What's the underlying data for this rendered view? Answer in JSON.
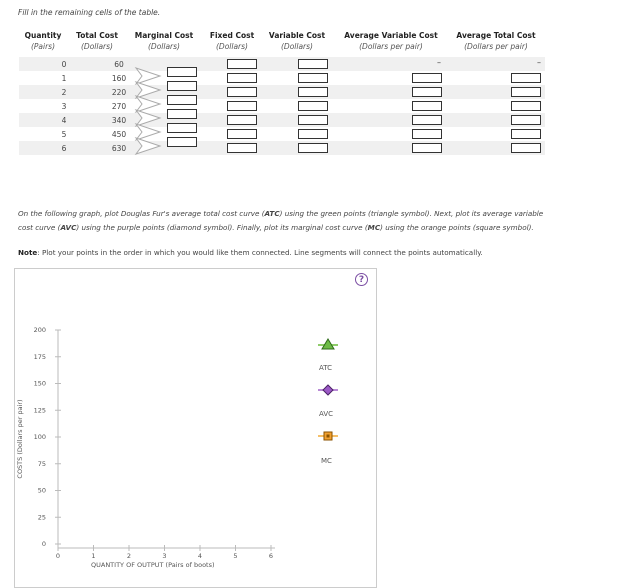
{
  "instructions": "Fill in the remaining cells of the table.",
  "table": {
    "headers": [
      {
        "title": "Quantity",
        "unit": "(Pairs)"
      },
      {
        "title": "Total Cost",
        "unit": "(Dollars)"
      },
      {
        "title": "Marginal Cost",
        "unit": "(Dollars)"
      },
      {
        "title": "Fixed Cost",
        "unit": "(Dollars)"
      },
      {
        "title": "Variable Cost",
        "unit": "(Dollars)"
      },
      {
        "title": "Average Variable Cost",
        "unit": "(Dollars per pair)"
      },
      {
        "title": "Average Total Cost",
        "unit": "(Dollars per pair)"
      }
    ],
    "rows": [
      {
        "quantity": "0",
        "total_cost": "60"
      },
      {
        "quantity": "1",
        "total_cost": "160"
      },
      {
        "quantity": "2",
        "total_cost": "220"
      },
      {
        "quantity": "3",
        "total_cost": "270"
      },
      {
        "quantity": "4",
        "total_cost": "340"
      },
      {
        "quantity": "5",
        "total_cost": "450"
      },
      {
        "quantity": "6",
        "total_cost": "630"
      }
    ],
    "dash": "–"
  },
  "paragraph": {
    "line1_a": "On the following graph, plot Douglas Fur's average total cost curve (",
    "line1_b": "ATC",
    "line1_c": ") using the green points (triangle symbol). Next, plot its average variable",
    "line2_a": "cost curve (",
    "line2_b": "AVC",
    "line2_c": ") using the purple points (diamond symbol). Finally, plot its marginal cost curve (",
    "line2_d": "MC",
    "line2_e": ") using the orange points (square symbol)."
  },
  "note": {
    "label": "Note",
    "text": ": Plot your points in the order in which you would like them connected. Line segments will connect the points automatically."
  },
  "help": "?",
  "graph": {
    "y_title": "COSTS (Dollars per pair)",
    "x_title": "QUANTITY OF OUTPUT (Pairs of boots)",
    "y_ticks": [
      "0",
      "25",
      "50",
      "75",
      "100",
      "125",
      "150",
      "175",
      "200"
    ],
    "x_ticks": [
      "0",
      "1",
      "2",
      "3",
      "4",
      "5",
      "6"
    ],
    "legend": [
      {
        "label": "ATC",
        "color": "#6dbb45",
        "symbol": "triangle-icon"
      },
      {
        "label": "AVC",
        "color": "#9b59c6",
        "symbol": "diamond-icon"
      },
      {
        "label": "MC",
        "color": "#f0a030",
        "symbol": "square-icon"
      }
    ]
  }
}
